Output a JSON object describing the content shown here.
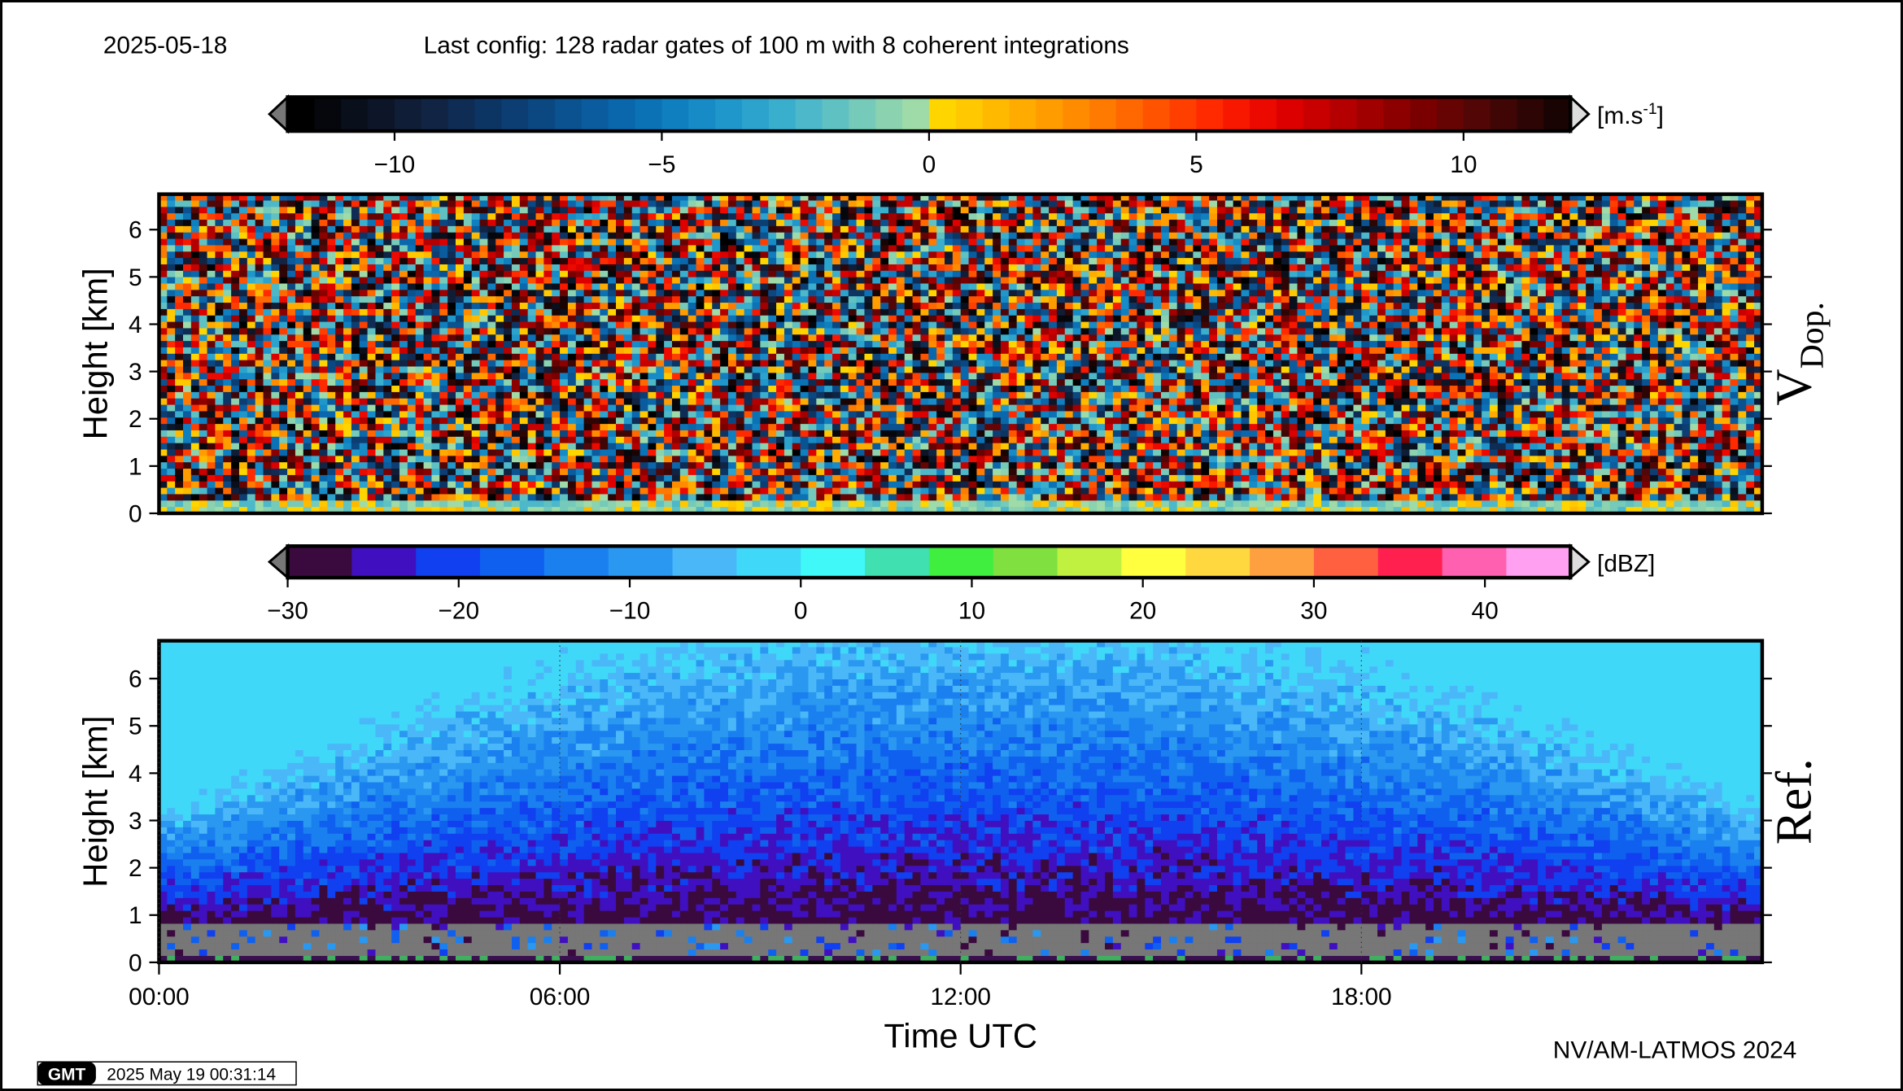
{
  "header": {
    "date": "2025-05-18",
    "config": "Last config: 128 radar gates of 100 m with 8 coherent integrations"
  },
  "chart_data": [
    {
      "type": "heatmap",
      "panel_label": "V",
      "panel_label_sub": "Dop.",
      "ylabel": "Height [km]",
      "ylim": [
        0,
        6.75
      ],
      "yticks": [
        0,
        1,
        2,
        3,
        4,
        5,
        6
      ],
      "colorbar": {
        "lim": [
          -12,
          12
        ],
        "unit": "[m.s",
        "unit_sup": "-1",
        "unit_end": "]",
        "ticks": [
          {
            "value": -10,
            "label": "−10"
          },
          {
            "value": -5,
            "label": "−5"
          },
          0,
          5,
          10
        ],
        "colors": [
          "#000000",
          "#05070d",
          "#0a0f1c",
          "#0d1628",
          "#101d36",
          "#112444",
          "#0f2c55",
          "#0d3564",
          "#0c3e73",
          "#0b4882",
          "#0b5290",
          "#0a5c9e",
          "#0a67ab",
          "#0b72b6",
          "#0f7fbf",
          "#168bc6",
          "#2097cb",
          "#2ca3cd",
          "#3aaecd",
          "#4cb8c9",
          "#60c1c2",
          "#75cab9",
          "#8ad2b0",
          "#9fdba8",
          "#ffd500",
          "#ffc800",
          "#ffba00",
          "#ffab00",
          "#ff9c00",
          "#ff8c00",
          "#ff7a00",
          "#ff6700",
          "#ff5300",
          "#ff3f00",
          "#ff2a00",
          "#f81800",
          "#ec0a00",
          "#dc0000",
          "#c80000",
          "#b40000",
          "#a10000",
          "#8d0000",
          "#7a0000",
          "#660404",
          "#530606",
          "#400606",
          "#2e0505",
          "#1a0303"
        ]
      }
    },
    {
      "type": "heatmap",
      "panel_label": "Ref.",
      "ylabel": "Height [km]",
      "ylim": [
        0,
        6.8
      ],
      "yticks": [
        0,
        1,
        2,
        3,
        4,
        5,
        6
      ],
      "xlabel": "Time UTC",
      "xlim": [
        0,
        24
      ],
      "xticks": [
        {
          "value": 0,
          "label": "00:00"
        },
        {
          "value": 6,
          "label": "06:00"
        },
        {
          "value": 12,
          "label": "12:00"
        },
        {
          "value": 18,
          "label": "18:00"
        }
      ],
      "grid": true,
      "colorbar": {
        "lim": [
          -30,
          45
        ],
        "unit": "[dBZ]",
        "ticks": [
          {
            "value": -30,
            "label": "−30"
          },
          {
            "value": -20,
            "label": "−20"
          },
          {
            "value": -10,
            "label": "−10"
          },
          0,
          10,
          20,
          30,
          40
        ],
        "colors": [
          "#3a0a3f",
          "#4010c0",
          "#1040f0",
          "#1060f0",
          "#1a80f0",
          "#2a98f0",
          "#4ab8f8",
          "#40d8f8",
          "#40f8f8",
          "#40e0b0",
          "#40ee40",
          "#80e040",
          "#c0f040",
          "#ffff40",
          "#ffd840",
          "#ffa040",
          "#ff6040",
          "#ff2050",
          "#ff60b0",
          "#ffa0f0"
        ]
      }
    }
  ],
  "footer": {
    "credit": "NV/AM-LATMOS 2024",
    "logo": "GMT",
    "timestamp": "2025 May 19 00:31:14"
  }
}
